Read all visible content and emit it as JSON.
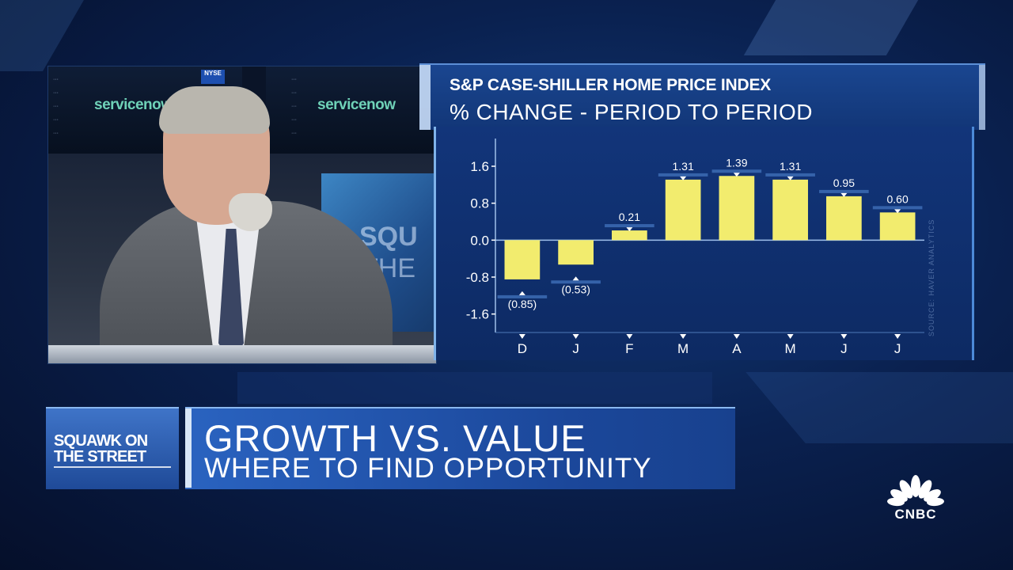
{
  "chart_header": {
    "title": "S&P CASE-SHILLER HOME PRICE INDEX",
    "subtitle": "% CHANGE - PERIOD TO PERIOD"
  },
  "chart_data": {
    "type": "bar",
    "title": "S&P CASE-SHILLER HOME PRICE INDEX",
    "subtitle": "% CHANGE - PERIOD TO PERIOD",
    "categories": [
      "D",
      "J",
      "F",
      "M",
      "A",
      "M",
      "J",
      "J"
    ],
    "values": [
      -0.85,
      -0.53,
      0.21,
      1.31,
      1.39,
      1.31,
      0.95,
      0.6
    ],
    "value_labels": [
      "(0.85)",
      "(0.53)",
      "0.21",
      "1.31",
      "1.39",
      "1.31",
      "0.95",
      "0.60"
    ],
    "yticks": [
      1.6,
      0.8,
      0.0,
      -0.8,
      -1.6
    ],
    "ytick_labels": [
      "1.6",
      "0.8",
      "0.0",
      "-0.8",
      "-1.6"
    ],
    "ylim": [
      -2.0,
      2.2
    ],
    "xlabel": "",
    "ylabel": "",
    "bar_color": "#f2ec6e",
    "grid": false,
    "source": "SOURCE: HAVER ANALYTICS"
  },
  "video": {
    "screen_brand_left": "servicenow",
    "screen_brand_right": "servicenow",
    "exchange_tag": "NYSE",
    "wall_text_line1": "SQU",
    "wall_text_line2": "THE"
  },
  "lower_third": {
    "show_logo_line1": "SQUAWK ON",
    "show_logo_line2": "THE STREET",
    "headline": "GROWTH VS. VALUE",
    "subheadline": "WHERE TO FIND OPPORTUNITY"
  },
  "network": {
    "name": "CNBC",
    "peacock_colors": [
      "#ffffff"
    ]
  }
}
